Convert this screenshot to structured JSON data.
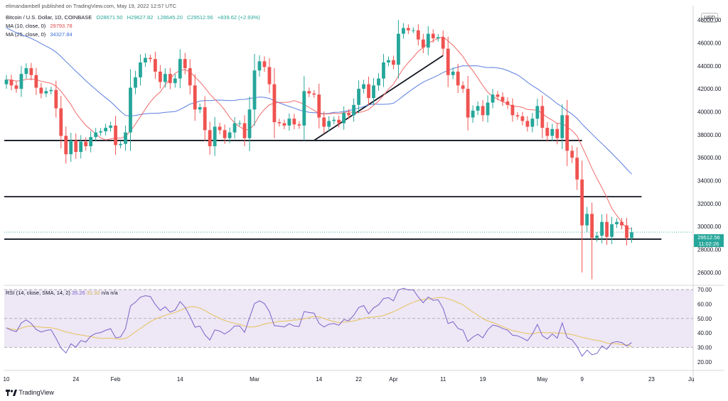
{
  "header": {
    "published": "elimandambell published on TradingView.com, May 19, 2022 12:57 UTC",
    "symbol": "Bitcoin / U.S. Dollar, 1D, COINBASE",
    "open": "O28671.50",
    "high": "H29627.82",
    "low": "L28645.20",
    "close": "C29512.56",
    "change": "+839.62 (+2.93%)",
    "ma10_label": "MA (10, close, 0)",
    "ma10_value": "29793.78",
    "ma25_label": "MA (25, close, 0)",
    "ma25_value": "34327.84",
    "currency": "USD",
    "price_tag": "29512.56",
    "countdown": "11:02:26"
  },
  "rsi_label": {
    "name": "RSI (14, close, SMA, 14, 2)",
    "rsi": "35.26",
    "sma": "31.32",
    "rest": "n/a  n/a"
  },
  "footer": {
    "brand": "TradingView"
  },
  "colors": {
    "up": "#26a69a",
    "down": "#ef5350",
    "ma10": "#f06b6b",
    "ma25": "#5b7fe0",
    "rsi": "#7b61c8",
    "rsi_sma": "#e8c25a",
    "band": "#ede7f6"
  },
  "chart_data": [
    {
      "type": "candlestick",
      "title": "Bitcoin / U.S. Dollar, 1D, COINBASE",
      "ylim": [
        25000,
        49000
      ],
      "y_ticks": [
        26000,
        28000,
        30000,
        32000,
        34000,
        36000,
        38000,
        40000,
        42000,
        44000,
        46000,
        48000
      ],
      "y_tick_labels": [
        "26000.00",
        "28000.00",
        "30000.00",
        "32000.00",
        "34000.00",
        "36000.00",
        "38000.00",
        "40000.00",
        "42000.00",
        "44000.00",
        "46000.00",
        "48000.00"
      ],
      "x_tick_labels": [
        {
          "day": 0,
          "label": "10"
        },
        {
          "day": 14,
          "label": "24"
        },
        {
          "day": 22,
          "label": "Feb"
        },
        {
          "day": 35,
          "label": "14"
        },
        {
          "day": 50,
          "label": "Mar"
        },
        {
          "day": 63,
          "label": "14"
        },
        {
          "day": 71,
          "label": "22"
        },
        {
          "day": 78,
          "label": "Apr"
        },
        {
          "day": 88,
          "label": "11"
        },
        {
          "day": 96,
          "label": "19"
        },
        {
          "day": 108,
          "label": "May"
        },
        {
          "day": 116,
          "label": "9"
        },
        {
          "day": 130,
          "label": "23"
        },
        {
          "day": 138,
          "label": "Ju"
        }
      ],
      "closes": [
        42800,
        42300,
        42000,
        43300,
        43800,
        43200,
        42100,
        41600,
        41800,
        41900,
        40300,
        37900,
        36300,
        37500,
        36500,
        37400,
        37000,
        37800,
        38200,
        38300,
        38600,
        38800,
        37100,
        37200,
        38200,
        42100,
        43000,
        44300,
        44700,
        44600,
        43500,
        42600,
        43300,
        42500,
        42900,
        44600,
        43800,
        42300,
        40200,
        40400,
        38400,
        37000,
        38700,
        38400,
        37700,
        38200,
        39000,
        39000,
        37700,
        40200,
        43600,
        44400,
        43900,
        42400,
        39100,
        39000,
        38800,
        39400,
        38900,
        38800,
        41800,
        41600,
        41500,
        39500,
        38700,
        39200,
        39300,
        39000,
        39900,
        39700,
        40600,
        42000,
        42400,
        41200,
        42300,
        42900,
        44300,
        44500,
        44100,
        46800,
        47300,
        47100,
        47100,
        46300,
        45600,
        46800,
        46400,
        46500,
        45500,
        43200,
        43500,
        42300,
        42000,
        39500,
        40100,
        40500,
        39700,
        40800,
        41500,
        41300,
        40900,
        40600,
        39700,
        39600,
        39200,
        38700,
        39400,
        40500,
        38600,
        37900,
        38500,
        37700,
        39700,
        36600,
        36000,
        34100,
        30100,
        31100,
        29000,
        29200,
        30400,
        29100,
        30200,
        30400,
        30100,
        29000,
        29500
      ],
      "horizontal_levels": [
        37500,
        32600,
        28900
      ],
      "trendline": {
        "from_day": 62,
        "from_price": 37500,
        "to_day": 88,
        "to_price": 44900
      },
      "current_price": 29512.56,
      "series": [
        {
          "name": "MA (10, close, 0)",
          "last": 29793.78
        },
        {
          "name": "MA (25, close, 0)",
          "last": 34327.84
        }
      ]
    },
    {
      "type": "line",
      "title": "RSI (14, close, SMA, 14, 2)",
      "ylim": [
        15,
        72
      ],
      "y_ticks": [
        20,
        30,
        40,
        50,
        60,
        70
      ],
      "y_tick_labels": [
        "20.00",
        "30.00",
        "40.00",
        "50.00",
        "60.00",
        "70.00"
      ],
      "band": [
        30,
        70
      ],
      "midline": 50,
      "series": [
        {
          "name": "RSI",
          "last": 35.26
        },
        {
          "name": "RSI SMA",
          "last": 31.32
        }
      ]
    }
  ]
}
